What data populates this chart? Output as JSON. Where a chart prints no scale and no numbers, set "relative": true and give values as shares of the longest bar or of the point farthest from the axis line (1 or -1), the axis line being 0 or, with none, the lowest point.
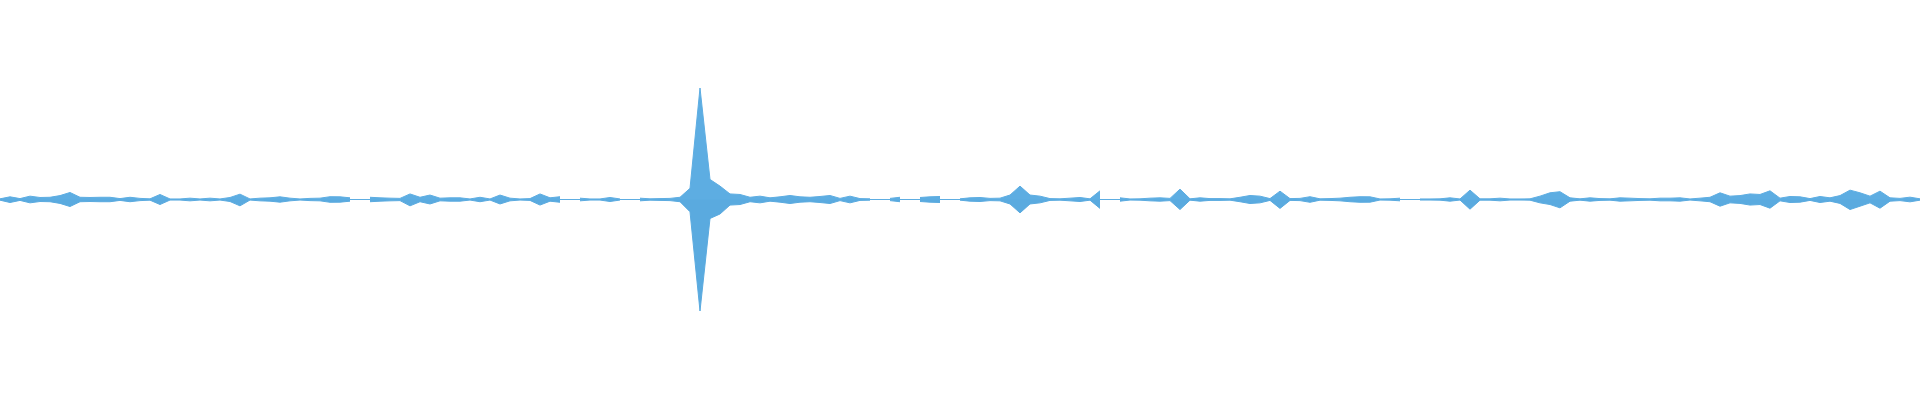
{
  "chart_data": {
    "type": "area",
    "relative": true,
    "categories": [
      null,
      null,
      null,
      null,
      null,
      null,
      null,
      null,
      null,
      null,
      null,
      null,
      null,
      null,
      null,
      null,
      null,
      null,
      null,
      null,
      null,
      null,
      null,
      null,
      null,
      null,
      null,
      null,
      null,
      null,
      null,
      null,
      null,
      null,
      null,
      null,
      null,
      null,
      null,
      null,
      null,
      null,
      null,
      null,
      null,
      null,
      null,
      null,
      null,
      null,
      null,
      null,
      null,
      null,
      null,
      null,
      null,
      null,
      null,
      null,
      null,
      null,
      null,
      null,
      null,
      null,
      null,
      null,
      null,
      null,
      null,
      null,
      null,
      null,
      null,
      null,
      null,
      null,
      null,
      null,
      null,
      null,
      null,
      null,
      null,
      null,
      null,
      null,
      null,
      null,
      null,
      null,
      null,
      null,
      null,
      null,
      null,
      null,
      null,
      null,
      null,
      null,
      null,
      null,
      null,
      null,
      null,
      null,
      null,
      null,
      null,
      null,
      null,
      null,
      null,
      null,
      null,
      null,
      null,
      null,
      null,
      null,
      null,
      null,
      null,
      null,
      null,
      null,
      null,
      null,
      null,
      null,
      null,
      null,
      null,
      null,
      null,
      null,
      null,
      null,
      null,
      null,
      null,
      null,
      null,
      null,
      null,
      null,
      null,
      null,
      null,
      null,
      null,
      null,
      null,
      null,
      null,
      null,
      null,
      null,
      null,
      null,
      null,
      null,
      null,
      null,
      null,
      null,
      null,
      null,
      null,
      null,
      null,
      null,
      null,
      null,
      null,
      null,
      null,
      null,
      null,
      null,
      null,
      null,
      null,
      null,
      null,
      null,
      null,
      null,
      null,
      null,
      null
    ],
    "series": [
      {
        "color": "#5dade2",
        "values": [
          0.006,
          0.024,
          0.008,
          0.03,
          0.018,
          0.02,
          0.035,
          0.063,
          0.02,
          0.018,
          0.02,
          0.02,
          0.008,
          0.02,
          0.01,
          0.006,
          0.045,
          0.005,
          0.005,
          0.012,
          0.005,
          0.012,
          0.005,
          0.018,
          0.048,
          0.005,
          0.012,
          0.015,
          0.024,
          0.012,
          0.005,
          0.01,
          0.012,
          0.025,
          0.024,
          0.015,
          null,
          0.02,
          0.015,
          0.012,
          0.01,
          0.05,
          0.02,
          0.04,
          0.012,
          0.015,
          0.015,
          0.005,
          0.02,
          0.005,
          0.04,
          0.012,
          0.005,
          0.008,
          0.05,
          0.015,
          0.025,
          null,
          0.012,
          0.005,
          0.005,
          0.018,
          0.005,
          null,
          0.012,
          0.006,
          0.008,
          0.01,
          0.02,
          0.1,
          1,
          0.18,
          0.12,
          0.05,
          0.045,
          0.02,
          0.03,
          0.015,
          0.024,
          0.036,
          0.024,
          0.02,
          0.027,
          0.036,
          0.01,
          0.03,
          0.008,
          0.006,
          null,
          0.01,
          0.02,
          null,
          0.018,
          0.024,
          0.027,
          null,
          0.006,
          0.015,
          0.018,
          0.01,
          0.012,
          0.04,
          0.12,
          0.04,
          0.03,
          0.008,
          0.006,
          0.012,
          0.018,
          0.006,
          0.078,
          null,
          0.015,
          0.005,
          0.006,
          0.012,
          0.015,
          0.01,
          0.093,
          0.006,
          0.015,
          0.008,
          0.008,
          0.006,
          0.02,
          0.036,
          0.03,
          0.008,
          0.075,
          0.008,
          0.01,
          0.025,
          0.006,
          0.008,
          0.012,
          0.02,
          0.025,
          0.024,
          0.005,
          0.006,
          0.012,
          null,
          0.005,
          0.005,
          0.006,
          0.015,
          0.005,
          0.084,
          0.006,
          0.006,
          0.012,
          0.005,
          0.005,
          0.006,
          0.03,
          0.06,
          0.07,
          0.015,
          0.006,
          0.015,
          0.008,
          0.006,
          0.015,
          0.012,
          0.008,
          0.006,
          0.012,
          0.012,
          0.015,
          0.005,
          0.012,
          0.02,
          0.06,
          0.03,
          0.035,
          0.05,
          0.045,
          0.078,
          0.012,
          0.027,
          0.024,
          0.008,
          0.027,
          0.015,
          0.035,
          0.084,
          0.06,
          0.03,
          0.075,
          0.015,
          0.01,
          0.021,
          0.006
        ]
      },
      {
        "color": "#5aaadf",
        "values": [
          -0.006,
          -0.027,
          -0.008,
          -0.03,
          -0.018,
          -0.02,
          -0.035,
          -0.063,
          -0.02,
          -0.018,
          -0.02,
          -0.02,
          -0.008,
          -0.02,
          -0.01,
          -0.006,
          -0.045,
          -0.005,
          -0.005,
          -0.012,
          -0.005,
          -0.012,
          -0.005,
          -0.018,
          -0.057,
          -0.005,
          -0.012,
          -0.015,
          -0.024,
          -0.012,
          -0.005,
          -0.01,
          -0.012,
          -0.025,
          -0.024,
          -0.015,
          null,
          -0.02,
          -0.015,
          -0.012,
          -0.01,
          -0.057,
          -0.02,
          -0.04,
          -0.012,
          -0.015,
          -0.015,
          -0.005,
          -0.02,
          -0.005,
          -0.04,
          -0.012,
          -0.005,
          -0.008,
          -0.05,
          -0.015,
          -0.025,
          null,
          -0.012,
          -0.005,
          -0.005,
          -0.018,
          -0.005,
          null,
          -0.012,
          -0.006,
          -0.008,
          -0.01,
          -0.02,
          -0.11,
          -1,
          -0.17,
          -0.13,
          -0.05,
          -0.045,
          -0.02,
          -0.03,
          -0.015,
          -0.024,
          -0.036,
          -0.024,
          -0.02,
          -0.027,
          -0.036,
          -0.01,
          -0.03,
          -0.008,
          -0.006,
          null,
          -0.01,
          -0.02,
          null,
          -0.018,
          -0.024,
          -0.027,
          null,
          -0.006,
          -0.015,
          -0.018,
          -0.01,
          -0.012,
          -0.04,
          -0.12,
          -0.04,
          -0.03,
          -0.008,
          -0.006,
          -0.012,
          -0.018,
          -0.006,
          -0.08,
          null,
          -0.015,
          -0.005,
          -0.006,
          -0.012,
          -0.015,
          -0.01,
          -0.09,
          -0.006,
          -0.015,
          -0.008,
          -0.008,
          -0.006,
          -0.02,
          -0.036,
          -0.03,
          -0.008,
          -0.08,
          -0.008,
          -0.01,
          -0.025,
          -0.006,
          -0.008,
          -0.012,
          -0.02,
          -0.025,
          -0.024,
          -0.005,
          -0.006,
          -0.012,
          null,
          -0.005,
          -0.005,
          -0.006,
          -0.015,
          -0.005,
          -0.087,
          -0.006,
          -0.006,
          -0.012,
          -0.005,
          -0.005,
          -0.006,
          -0.03,
          -0.045,
          -0.075,
          -0.015,
          -0.006,
          -0.015,
          -0.008,
          -0.006,
          -0.015,
          -0.012,
          -0.008,
          -0.006,
          -0.012,
          -0.012,
          -0.015,
          -0.005,
          -0.012,
          -0.02,
          -0.06,
          -0.03,
          -0.035,
          -0.05,
          -0.045,
          -0.078,
          -0.012,
          -0.027,
          -0.024,
          -0.008,
          -0.027,
          -0.015,
          -0.035,
          -0.09,
          -0.06,
          -0.03,
          -0.078,
          -0.015,
          -0.01,
          -0.021,
          -0.006
        ]
      }
    ]
  }
}
